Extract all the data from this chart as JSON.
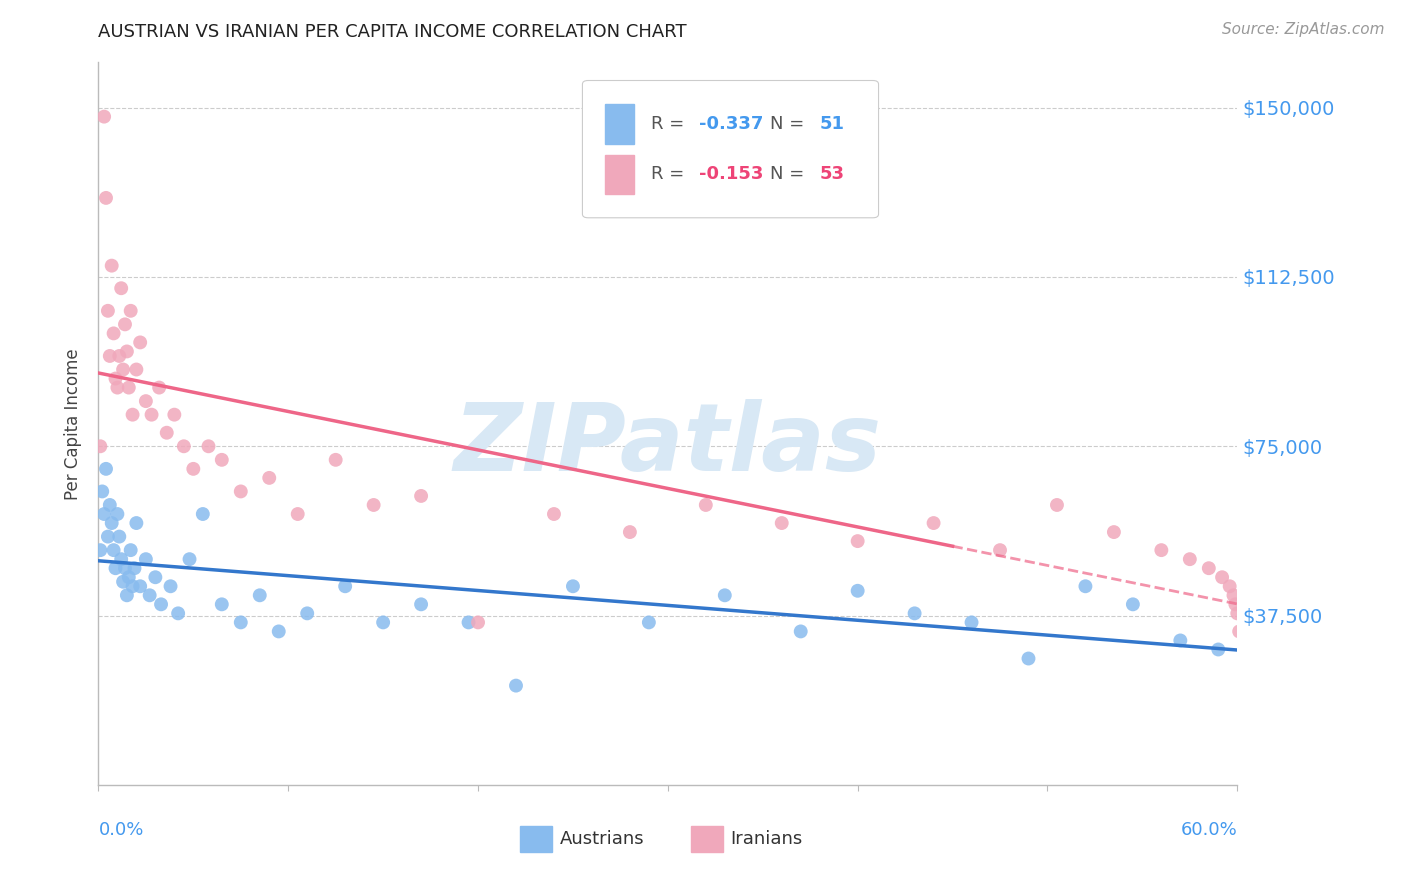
{
  "title": "AUSTRIAN VS IRANIAN PER CAPITA INCOME CORRELATION CHART",
  "source": "Source: ZipAtlas.com",
  "ylabel": "Per Capita Income",
  "xlim": [
    0.0,
    0.6
  ],
  "ylim": [
    0,
    160000
  ],
  "yticks": [
    0,
    37500,
    75000,
    112500,
    150000
  ],
  "ytick_labels": [
    "",
    "$37,500",
    "$75,000",
    "$112,500",
    "$150,000"
  ],
  "background_color": "#ffffff",
  "grid_color": "#cccccc",
  "watermark_text": "ZIPatlas",
  "watermark_color": "#d8e8f5",
  "austrians_color": "#88bbee",
  "iranians_color": "#f0a8bb",
  "austrians_line_color": "#3377cc",
  "iranians_line_color": "#ee6688",
  "legend_text_blue": "#4499ee",
  "legend_text_red": "#ee4477",
  "legend_text_gray": "#555555",
  "title_color": "#222222",
  "source_color": "#999999",
  "axis_label_color": "#4499ee",
  "ylabel_color": "#444444",
  "austrians_x": [
    0.001,
    0.002,
    0.003,
    0.004,
    0.005,
    0.006,
    0.007,
    0.008,
    0.009,
    0.01,
    0.011,
    0.012,
    0.013,
    0.014,
    0.015,
    0.016,
    0.017,
    0.018,
    0.019,
    0.02,
    0.022,
    0.025,
    0.027,
    0.03,
    0.033,
    0.038,
    0.042,
    0.048,
    0.055,
    0.065,
    0.075,
    0.085,
    0.095,
    0.11,
    0.13,
    0.15,
    0.17,
    0.195,
    0.22,
    0.25,
    0.29,
    0.33,
    0.37,
    0.4,
    0.43,
    0.46,
    0.49,
    0.52,
    0.545,
    0.57,
    0.59
  ],
  "austrians_y": [
    52000,
    65000,
    60000,
    70000,
    55000,
    62000,
    58000,
    52000,
    48000,
    60000,
    55000,
    50000,
    45000,
    48000,
    42000,
    46000,
    52000,
    44000,
    48000,
    58000,
    44000,
    50000,
    42000,
    46000,
    40000,
    44000,
    38000,
    50000,
    60000,
    40000,
    36000,
    42000,
    34000,
    38000,
    44000,
    36000,
    40000,
    36000,
    22000,
    44000,
    36000,
    42000,
    34000,
    43000,
    38000,
    36000,
    28000,
    44000,
    40000,
    32000,
    30000
  ],
  "iranians_x": [
    0.001,
    0.003,
    0.004,
    0.005,
    0.006,
    0.007,
    0.008,
    0.009,
    0.01,
    0.011,
    0.012,
    0.013,
    0.014,
    0.015,
    0.016,
    0.017,
    0.018,
    0.02,
    0.022,
    0.025,
    0.028,
    0.032,
    0.036,
    0.04,
    0.045,
    0.05,
    0.058,
    0.065,
    0.075,
    0.09,
    0.105,
    0.125,
    0.145,
    0.17,
    0.2,
    0.24,
    0.28,
    0.32,
    0.36,
    0.4,
    0.44,
    0.475,
    0.505,
    0.535,
    0.56,
    0.575,
    0.585,
    0.592,
    0.596,
    0.598,
    0.599,
    0.6,
    0.601
  ],
  "iranians_y": [
    75000,
    148000,
    130000,
    105000,
    95000,
    115000,
    100000,
    90000,
    88000,
    95000,
    110000,
    92000,
    102000,
    96000,
    88000,
    105000,
    82000,
    92000,
    98000,
    85000,
    82000,
    88000,
    78000,
    82000,
    75000,
    70000,
    75000,
    72000,
    65000,
    68000,
    60000,
    72000,
    62000,
    64000,
    36000,
    60000,
    56000,
    62000,
    58000,
    54000,
    58000,
    52000,
    62000,
    56000,
    52000,
    50000,
    48000,
    46000,
    44000,
    42000,
    40000,
    38000,
    34000
  ]
}
